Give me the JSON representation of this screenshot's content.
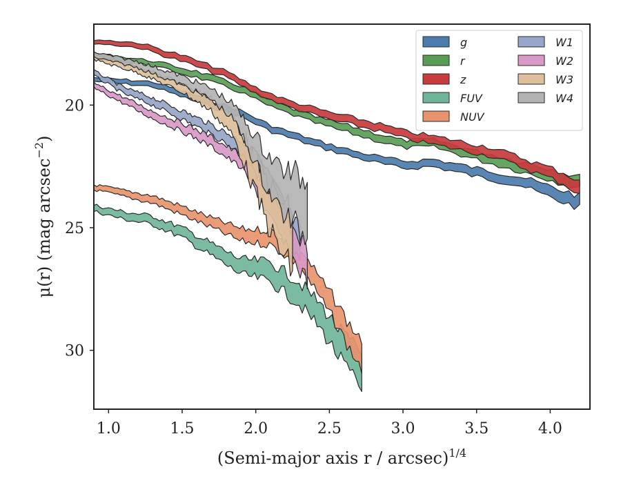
{
  "chart_data": {
    "type": "area",
    "title": "",
    "xlabel": "(Semi-major axis r / arcsec)",
    "xlabel_exponent": "1/4",
    "ylabel": "μ(r) (mag arcsec",
    "ylabel_exponent": "−2",
    "ylabel_tail": ")",
    "xlim": [
      0.9,
      4.27
    ],
    "ylim": [
      32.4,
      16.7
    ],
    "y_inverted": true,
    "xticks": [
      1.0,
      1.5,
      2.0,
      2.5,
      3.0,
      3.5,
      4.0
    ],
    "xtick_labels": [
      "1.0",
      "1.5",
      "2.0",
      "2.5",
      "3.0",
      "3.5",
      "4.0"
    ],
    "yticks": [
      20,
      25,
      30
    ],
    "ytick_labels": [
      "20",
      "25",
      "30"
    ],
    "grid": false,
    "legend_position": "top-right",
    "legend_columns": 2,
    "series": [
      {
        "name": "g",
        "color": "#4c7cae",
        "x": [
          0.9,
          1.3,
          1.6,
          1.9,
          2.1,
          2.4,
          2.7,
          3.0,
          3.2,
          3.5,
          3.8,
          4.0,
          4.2
        ],
        "y": [
          18.95,
          19.15,
          19.75,
          20.35,
          20.95,
          21.55,
          22.05,
          22.45,
          22.35,
          22.75,
          23.1,
          23.55,
          23.95
        ],
        "width": [
          0.15,
          0.2,
          0.25,
          0.25,
          0.25,
          0.25,
          0.25,
          0.3,
          0.3,
          0.35,
          0.35,
          0.45,
          0.5
        ]
      },
      {
        "name": "r",
        "color": "#5a9d55",
        "x": [
          0.9,
          1.3,
          1.6,
          1.9,
          2.1,
          2.4,
          2.7,
          3.0,
          3.2,
          3.5,
          3.8,
          4.0,
          4.2
        ],
        "y": [
          17.95,
          18.3,
          18.75,
          19.35,
          19.95,
          20.6,
          21.1,
          21.6,
          21.55,
          22.05,
          22.5,
          22.8,
          23.2
        ],
        "width": [
          0.15,
          0.2,
          0.25,
          0.25,
          0.25,
          0.25,
          0.3,
          0.3,
          0.3,
          0.35,
          0.4,
          0.45,
          0.5
        ]
      },
      {
        "name": "z",
        "color": "#c83b3c",
        "x": [
          0.9,
          1.2,
          1.5,
          1.8,
          2.0,
          2.2,
          2.5,
          2.8,
          3.0,
          3.3,
          3.6,
          3.9,
          4.1,
          4.2
        ],
        "y": [
          17.4,
          17.55,
          18.1,
          18.75,
          19.4,
          19.9,
          20.45,
          20.85,
          21.2,
          21.55,
          21.9,
          22.55,
          23.0,
          23.4
        ],
        "width": [
          0.15,
          0.2,
          0.25,
          0.25,
          0.25,
          0.25,
          0.3,
          0.3,
          0.3,
          0.35,
          0.35,
          0.4,
          0.45,
          0.55
        ]
      },
      {
        "name": "FUV",
        "color": "#6fb59a",
        "x": [
          0.9,
          1.1,
          1.3,
          1.5,
          1.7,
          1.9,
          2.1,
          2.3,
          2.45,
          2.55,
          2.65,
          2.72
        ],
        "y": [
          24.2,
          24.5,
          24.7,
          25.2,
          25.9,
          26.6,
          26.8,
          27.7,
          28.7,
          29.6,
          30.4,
          30.9
        ],
        "width": [
          0.25,
          0.3,
          0.35,
          0.4,
          0.5,
          0.6,
          0.8,
          0.9,
          1.0,
          1.1,
          1.3,
          1.5
        ]
      },
      {
        "name": "NUV",
        "color": "#e8936d",
        "x": [
          0.9,
          1.1,
          1.3,
          1.5,
          1.7,
          1.9,
          2.1,
          2.3,
          2.45,
          2.55,
          2.65,
          2.72
        ],
        "y": [
          23.35,
          23.6,
          23.85,
          24.3,
          24.8,
          25.3,
          25.4,
          26.2,
          27.6,
          28.5,
          29.6,
          30.1
        ],
        "width": [
          0.2,
          0.25,
          0.3,
          0.35,
          0.4,
          0.5,
          0.6,
          0.7,
          0.8,
          0.9,
          1.0,
          1.2
        ]
      },
      {
        "name": "W1",
        "color": "#97a6c9",
        "x": [
          0.9,
          1.1,
          1.3,
          1.5,
          1.7,
          1.9,
          2.0,
          2.1,
          2.2,
          2.3
        ],
        "y": [
          18.7,
          19.4,
          19.85,
          20.4,
          21.0,
          21.7,
          22.4,
          23.5,
          24.8,
          25.9
        ],
        "width": [
          0.2,
          0.25,
          0.3,
          0.35,
          0.4,
          0.5,
          0.8,
          1.1,
          1.3,
          1.5
        ]
      },
      {
        "name": "W2",
        "color": "#d999c7",
        "x": [
          0.9,
          1.1,
          1.3,
          1.5,
          1.7,
          1.9,
          2.0,
          2.1,
          2.2,
          2.3,
          2.35
        ],
        "y": [
          19.2,
          19.8,
          20.4,
          20.9,
          21.5,
          22.3,
          23.1,
          24.2,
          25.2,
          26.1,
          26.4
        ],
        "width": [
          0.2,
          0.25,
          0.3,
          0.35,
          0.4,
          0.5,
          0.7,
          0.9,
          1.1,
          1.3,
          1.4
        ]
      },
      {
        "name": "W3",
        "color": "#ddbf99",
        "x": [
          0.9,
          1.2,
          1.5,
          1.7,
          1.85,
          1.95,
          2.05,
          2.15,
          2.25
        ],
        "y": [
          18.05,
          18.55,
          19.3,
          20.0,
          20.9,
          22.2,
          23.6,
          24.8,
          25.6
        ],
        "width": [
          0.2,
          0.25,
          0.35,
          0.5,
          0.8,
          1.2,
          1.6,
          2.0,
          2.3
        ]
      },
      {
        "name": "W4",
        "color": "#b3b3b3",
        "x": [
          0.9,
          1.2,
          1.5,
          1.7,
          1.85,
          1.95,
          2.05,
          2.15,
          2.25,
          2.35
        ],
        "y": [
          17.95,
          18.35,
          19.0,
          19.55,
          20.3,
          21.3,
          22.4,
          23.3,
          23.8,
          24.2
        ],
        "width": [
          0.2,
          0.25,
          0.35,
          0.45,
          0.6,
          0.9,
          1.3,
          1.7,
          2.0,
          2.3
        ]
      }
    ]
  }
}
